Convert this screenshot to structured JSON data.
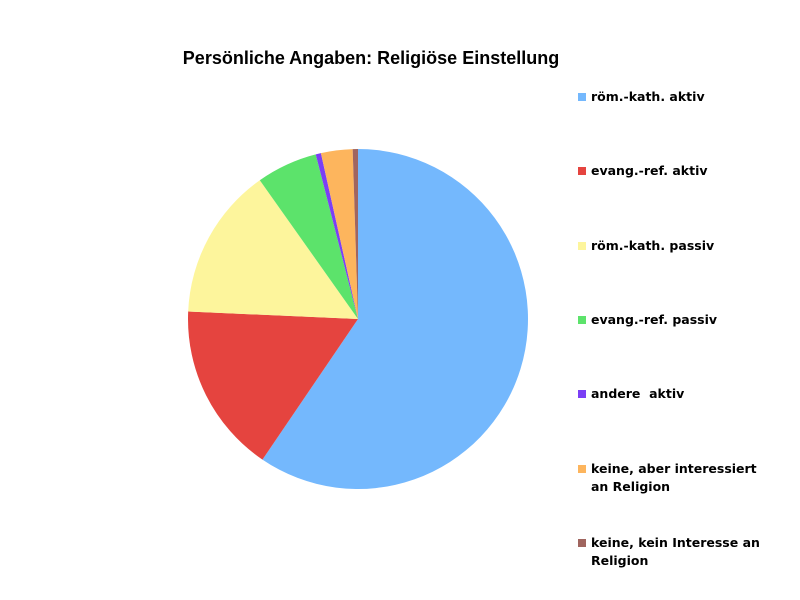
{
  "chart_data": {
    "type": "pie",
    "title": "Persönliche Angaben: Religiöse Einstellung",
    "categories": [
      "röm.-kath. aktiv",
      "evang.-ref. aktiv",
      "röm.-kath. passiv",
      "evang.-ref. passiv",
      "andere  aktiv",
      "keine, aber interessiert an Religion",
      "keine, kein Interesse an Religion"
    ],
    "values": [
      59.5,
      16.2,
      14.5,
      5.8,
      0.5,
      3,
      0.5
    ],
    "colors": [
      "#74b8fd",
      "#e5443f",
      "#fdf59c",
      "#5ce36b",
      "#7b3ff5",
      "#fdb55d",
      "#a0655f"
    ],
    "legend": "right"
  }
}
